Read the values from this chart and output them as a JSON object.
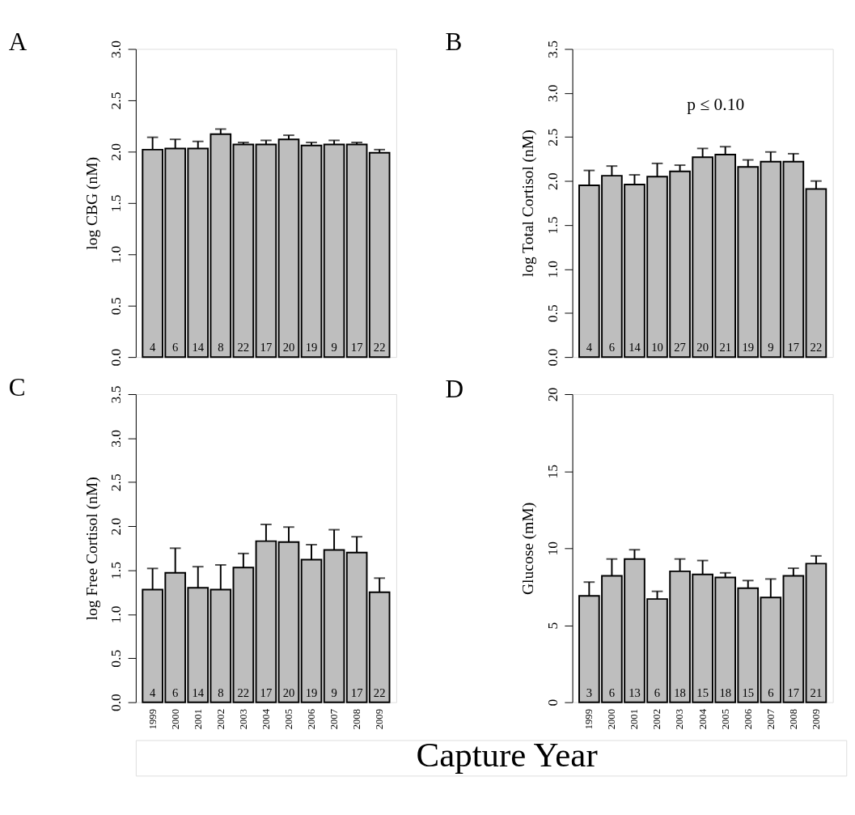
{
  "chart_data": [
    {
      "type": "bar",
      "title": "A",
      "ylabel": "log CBG (nM)",
      "categories": [
        "1999",
        "2000",
        "2001",
        "2002",
        "2003",
        "2004",
        "2005",
        "2006",
        "2007",
        "2008",
        "2009"
      ],
      "series": [
        {
          "color": "#bebebe",
          "values": [
            2.02,
            2.03,
            2.03,
            2.17,
            2.07,
            2.07,
            2.12,
            2.06,
            2.07,
            2.07,
            1.99
          ],
          "errors": [
            [
              2.02,
              2.14
            ],
            [
              2.03,
              2.12
            ],
            [
              2.03,
              2.1
            ],
            [
              2.17,
              2.22
            ],
            [
              2.07,
              2.09
            ],
            [
              2.07,
              2.11
            ],
            [
              2.12,
              2.16
            ],
            [
              2.06,
              2.09
            ],
            [
              2.07,
              2.11
            ],
            [
              2.07,
              2.09
            ],
            [
              1.99,
              2.02
            ]
          ]
        }
      ],
      "ylim": [
        0,
        3
      ],
      "yticks": [
        {
          "value": 0,
          "label": "0.0"
        },
        {
          "value": 0.5,
          "label": "0.5"
        },
        {
          "value": 1,
          "label": "1.0"
        },
        {
          "value": 1.5,
          "label": "1.5"
        },
        {
          "value": 2,
          "label": "2.0"
        },
        {
          "value": 2.5,
          "label": "2.5"
        },
        {
          "value": 3,
          "label": "3.0"
        }
      ],
      "tick_labels": "y",
      "grid": false,
      "annotations": [
        {
          "text": "4",
          "x": "1999",
          "y": 0
        },
        {
          "text": "6",
          "x": "2000",
          "y": 0
        },
        {
          "text": "14",
          "x": "2001",
          "y": 0
        },
        {
          "text": "8",
          "x": "2002",
          "y": 0
        },
        {
          "text": "22",
          "x": "2003",
          "y": 0
        },
        {
          "text": "17",
          "x": "2004",
          "y": 0
        },
        {
          "text": "20",
          "x": "2005",
          "y": 0
        },
        {
          "text": "19",
          "x": "2006",
          "y": 0
        },
        {
          "text": "9",
          "x": "2007",
          "y": 0
        },
        {
          "text": "17",
          "x": "2008",
          "y": 0
        },
        {
          "text": "22",
          "x": "2009",
          "y": 0
        }
      ]
    },
    {
      "type": "bar",
      "title": "B",
      "ylabel": "log Total Cortisol (nM)",
      "categories": [
        "1999",
        "2000",
        "2001",
        "2002",
        "2003",
        "2004",
        "2005",
        "2006",
        "2007",
        "2008",
        "2009"
      ],
      "series": [
        {
          "color": "#bebebe",
          "values": [
            1.95,
            2.06,
            1.96,
            2.05,
            2.11,
            2.27,
            2.3,
            2.16,
            2.22,
            2.22,
            1.91
          ],
          "errors": [
            [
              1.95,
              2.12
            ],
            [
              2.06,
              2.17
            ],
            [
              1.96,
              2.07
            ],
            [
              2.05,
              2.2
            ],
            [
              2.11,
              2.18
            ],
            [
              2.27,
              2.37
            ],
            [
              2.3,
              2.39
            ],
            [
              2.16,
              2.24
            ],
            [
              2.22,
              2.33
            ],
            [
              2.22,
              2.31
            ],
            [
              1.91,
              2.0
            ]
          ]
        }
      ],
      "ylim": [
        0,
        3.5
      ],
      "yticks": [
        {
          "value": 0,
          "label": "0.0"
        },
        {
          "value": 0.5,
          "label": "0.5"
        },
        {
          "value": 1,
          "label": "1.0"
        },
        {
          "value": 1.5,
          "label": "1.5"
        },
        {
          "value": 2,
          "label": "2.0"
        },
        {
          "value": 2.5,
          "label": "2.5"
        },
        {
          "value": 3,
          "label": "3.0"
        },
        {
          "value": 3.5,
          "label": "3.5"
        }
      ],
      "tick_labels": "y",
      "grid": false,
      "annotations": [
        "p ≤ 0.10",
        {
          "text": "4",
          "x": "1999",
          "y": 0
        },
        {
          "text": "6",
          "x": "2000",
          "y": 0
        },
        {
          "text": "14",
          "x": "2001",
          "y": 0
        },
        {
          "text": "10",
          "x": "2002",
          "y": 0
        },
        {
          "text": "27",
          "x": "2003",
          "y": 0
        },
        {
          "text": "20",
          "x": "2004",
          "y": 0
        },
        {
          "text": "21",
          "x": "2005",
          "y": 0
        },
        {
          "text": "19",
          "x": "2006",
          "y": 0
        },
        {
          "text": "9",
          "x": "2007",
          "y": 0
        },
        {
          "text": "17",
          "x": "2008",
          "y": 0
        },
        {
          "text": "22",
          "x": "2009",
          "y": 0
        }
      ]
    },
    {
      "type": "bar",
      "title": "C",
      "ylabel": "log Free Cortisol (nM)",
      "xlabel": "Capture Year",
      "categories": [
        "1999",
        "2000",
        "2001",
        "2002",
        "2003",
        "2004",
        "2005",
        "2006",
        "2007",
        "2008",
        "2009"
      ],
      "series": [
        {
          "color": "#bebebe",
          "values": [
            1.28,
            1.47,
            1.3,
            1.28,
            1.53,
            1.83,
            1.82,
            1.62,
            1.73,
            1.7,
            1.25
          ],
          "errors": [
            [
              1.28,
              1.52
            ],
            [
              1.47,
              1.75
            ],
            [
              1.3,
              1.54
            ],
            [
              1.28,
              1.56
            ],
            [
              1.53,
              1.69
            ],
            [
              1.83,
              2.02
            ],
            [
              1.82,
              1.99
            ],
            [
              1.62,
              1.79
            ],
            [
              1.73,
              1.96
            ],
            [
              1.7,
              1.88
            ],
            [
              1.25,
              1.41
            ]
          ]
        }
      ],
      "ylim": [
        0,
        3.5
      ],
      "yticks": [
        {
          "value": 0,
          "label": "0.0"
        },
        {
          "value": 0.5,
          "label": "0.5"
        },
        {
          "value": 1,
          "label": "1.0"
        },
        {
          "value": 1.5,
          "label": "1.5"
        },
        {
          "value": 2,
          "label": "2.0"
        },
        {
          "value": 2.5,
          "label": "2.5"
        },
        {
          "value": 3,
          "label": "3.0"
        },
        {
          "value": 3.5,
          "label": "3.5"
        }
      ],
      "grid": false,
      "annotations": [
        {
          "text": "4",
          "x": "1999",
          "y": 0
        },
        {
          "text": "6",
          "x": "2000",
          "y": 0
        },
        {
          "text": "14",
          "x": "2001",
          "y": 0
        },
        {
          "text": "8",
          "x": "2002",
          "y": 0
        },
        {
          "text": "22",
          "x": "2003",
          "y": 0
        },
        {
          "text": "17",
          "x": "2004",
          "y": 0
        },
        {
          "text": "20",
          "x": "2005",
          "y": 0
        },
        {
          "text": "19",
          "x": "2006",
          "y": 0
        },
        {
          "text": "9",
          "x": "2007",
          "y": 0
        },
        {
          "text": "17",
          "x": "2008",
          "y": 0
        },
        {
          "text": "22",
          "x": "2009",
          "y": 0
        }
      ]
    },
    {
      "type": "bar",
      "title": "D",
      "ylabel": "Glucose (mM)",
      "categories": [
        "1999",
        "2000",
        "2001",
        "2002",
        "2003",
        "2004",
        "2005",
        "2006",
        "2007",
        "2008",
        "2009"
      ],
      "series": [
        {
          "color": "#bebebe",
          "values": [
            6.9,
            8.2,
            9.3,
            6.7,
            8.5,
            8.3,
            8.1,
            7.4,
            6.8,
            8.2,
            9.0
          ],
          "errors": [
            [
              6.9,
              7.8
            ],
            [
              8.2,
              9.3
            ],
            [
              9.3,
              9.9
            ],
            [
              6.7,
              7.2
            ],
            [
              8.5,
              9.3
            ],
            [
              8.3,
              9.2
            ],
            [
              8.1,
              8.4
            ],
            [
              7.4,
              7.9
            ],
            [
              6.8,
              8.0
            ],
            [
              8.2,
              8.7
            ],
            [
              9.0,
              9.5
            ]
          ]
        }
      ],
      "ylim": [
        0,
        20
      ],
      "yticks": [
        0,
        5,
        10,
        15,
        20
      ],
      "grid": false,
      "annotations": [
        {
          "text": "3",
          "x": "1999",
          "y": 0
        },
        {
          "text": "6",
          "x": "2000",
          "y": 0
        },
        {
          "text": "13",
          "x": "2001",
          "y": 0
        },
        {
          "text": "6",
          "x": "2002",
          "y": 0
        },
        {
          "text": "18",
          "x": "2003",
          "y": 0
        },
        {
          "text": "15",
          "x": "2004",
          "y": 0
        },
        {
          "text": "18",
          "x": "2005",
          "y": 0
        },
        {
          "text": "15",
          "x": "2006",
          "y": 0
        },
        {
          "text": "6",
          "x": "2007",
          "y": 0
        },
        {
          "text": "17",
          "x": "2008",
          "y": 0
        },
        {
          "text": "21",
          "x": "2009",
          "y": 0
        }
      ]
    }
  ]
}
